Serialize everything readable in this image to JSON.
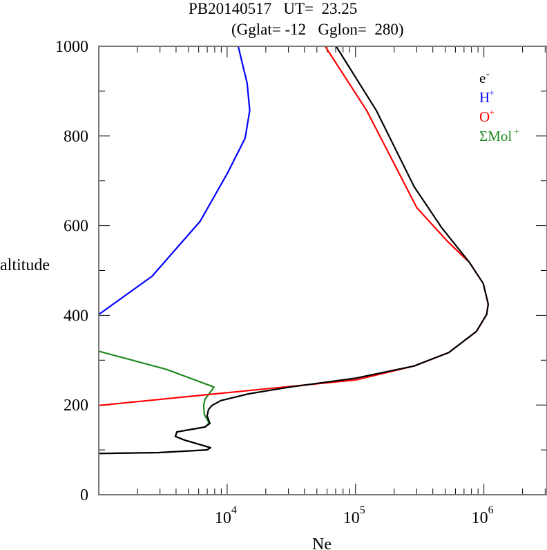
{
  "chart_data": {
    "type": "line",
    "title": "PB20140517   UT=  23.25",
    "subtitle": "(Gglat= -12   Gglon=  280)",
    "xlabel": "Ne",
    "ylabel": "altitude",
    "xscale": "log",
    "xlim": [
      1000,
      3100000
    ],
    "ylim": [
      0,
      1000
    ],
    "yticks": [
      0,
      200,
      400,
      600,
      800,
      1000
    ],
    "xticks": [
      {
        "value": 10000,
        "base": "10",
        "exp": "4"
      },
      {
        "value": 100000,
        "base": "10",
        "exp": "5"
      },
      {
        "value": 1000000,
        "base": "10",
        "exp": "6"
      }
    ],
    "legend_position": "top-right",
    "series": [
      {
        "name": "e",
        "sup": "-",
        "color": "#000000",
        "points": [
          [
            1000,
            92
          ],
          [
            2940,
            94
          ],
          [
            6980,
            100
          ],
          [
            7430,
            105
          ],
          [
            4640,
            122
          ],
          [
            3950,
            130
          ],
          [
            4060,
            140
          ],
          [
            6730,
            151
          ],
          [
            7340,
            159
          ],
          [
            6980,
            176
          ],
          [
            7160,
            190
          ],
          [
            7620,
            199
          ],
          [
            8960,
            210
          ],
          [
            14700,
            225
          ],
          [
            30800,
            240
          ],
          [
            100000,
            260
          ],
          [
            286000,
            287
          ],
          [
            532000,
            317
          ],
          [
            873000,
            364
          ],
          [
            1050000,
            402
          ],
          [
            1080000,
            425
          ],
          [
            988000,
            471
          ],
          [
            771000,
            518
          ],
          [
            470000,
            595
          ],
          [
            286000,
            687
          ],
          [
            145000,
            857
          ],
          [
            70600,
            1000
          ]
        ]
      },
      {
        "name": "H",
        "sup": "+",
        "color": "#0000ff",
        "points": [
          [
            1000,
            402
          ],
          [
            2600,
            487
          ],
          [
            6170,
            610
          ],
          [
            10100,
            718
          ],
          [
            13800,
            795
          ],
          [
            15000,
            857
          ],
          [
            14300,
            918
          ],
          [
            12200,
            1000
          ]
        ]
      },
      {
        "name": "O",
        "sup": "+",
        "color": "#ff0000",
        "points": [
          [
            1000,
            199
          ],
          [
            100000,
            256
          ],
          [
            286000,
            287
          ],
          [
            532000,
            317
          ],
          [
            873000,
            364
          ],
          [
            1050000,
            402
          ],
          [
            1080000,
            425
          ],
          [
            988000,
            471
          ],
          [
            771000,
            518
          ],
          [
            520000,
            565
          ],
          [
            300000,
            640
          ],
          [
            122000,
            857
          ],
          [
            58000,
            1000
          ]
        ]
      },
      {
        "name": "ΣMol",
        "sup": "+",
        "color": "#228b22",
        "points": [
          [
            1000,
            92
          ],
          [
            2940,
            94
          ],
          [
            6980,
            100
          ],
          [
            7430,
            105
          ],
          [
            4640,
            122
          ],
          [
            3950,
            130
          ],
          [
            4060,
            140
          ],
          [
            6730,
            151
          ],
          [
            7230,
            160
          ],
          [
            6640,
            179
          ],
          [
            6560,
            199
          ],
          [
            6730,
            213
          ],
          [
            7900,
            240
          ],
          [
            3330,
            280
          ],
          [
            1000,
            320
          ]
        ]
      }
    ]
  }
}
